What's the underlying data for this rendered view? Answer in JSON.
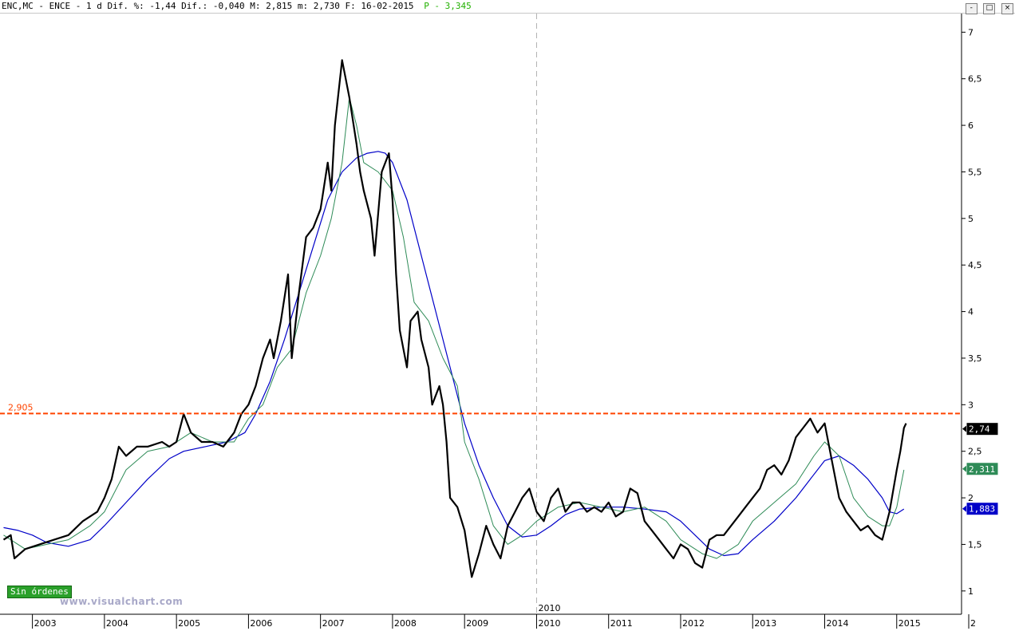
{
  "header": {
    "text": "ENC,MC - ENCE -  1 d Dif. %: -1,44 Dif.: -0,040 M: 2,815 m: 2,730 F: 16-02-2015",
    "p_text": "P - 3,345"
  },
  "window_buttons": [
    "-",
    "□",
    "×"
  ],
  "watermark": "www.visualchart.com",
  "orders_badge": "Sin órdenes",
  "colors": {
    "price": "#000000",
    "ma_short": "#2e8b57",
    "ma_long": "#0000c8",
    "resistance": "#ff4400",
    "price_box": "#000000",
    "ma_short_box": "#2e8b57",
    "ma_long_box": "#0000c8"
  },
  "chart_data": {
    "type": "line",
    "title": "ENC,MC - ENCE",
    "xlabel": "",
    "ylabel": "",
    "x_range": [
      2002.55,
      2015.9
    ],
    "ylim": [
      0.75,
      7.2
    ],
    "y_ticks": [
      1,
      1.5,
      2,
      2.5,
      3,
      3.5,
      4,
      4.5,
      5,
      5.5,
      6,
      6.5,
      7
    ],
    "y_tick_labels": [
      "1",
      "1,5",
      "2",
      "2,5",
      "3",
      "3,5",
      "4",
      "4,5",
      "5",
      "5,5",
      "6",
      "6,5",
      "7"
    ],
    "x_ticks": [
      2003,
      2004,
      2005,
      2006,
      2007,
      2008,
      2009,
      2010,
      2011,
      2012,
      2013,
      2014,
      2015
    ],
    "x_tick_labels": [
      "2003",
      "2004",
      "2005",
      "2006",
      "2007",
      "2008",
      "2009",
      "2010",
      "2011",
      "2012",
      "2013",
      "2014",
      "2015"
    ],
    "x_last_label": "2",
    "separator_year": 2010,
    "separator_label": "2010",
    "grid": false,
    "legend": "none",
    "horizontal_line": {
      "value": 2.905,
      "label": "2,905"
    },
    "series": [
      {
        "x": [
          2002.6,
          2002.7,
          2002.75,
          2002.9,
          2003.1,
          2003.3,
          2003.5,
          2003.7,
          2003.9,
          2004.0,
          2004.1,
          2004.2,
          2004.3,
          2004.45,
          2004.6,
          2004.8,
          2004.9,
          2005.0,
          2005.1,
          2005.2,
          2005.35,
          2005.5,
          2005.65,
          2005.8,
          2005.9,
          2006.0,
          2006.1,
          2006.2,
          2006.3,
          2006.35,
          2006.45,
          2006.55,
          2006.6,
          2006.7,
          2006.8,
          2006.9,
          2007.0,
          2007.1,
          2007.15,
          2007.2,
          2007.3,
          2007.4,
          2007.5,
          2007.55,
          2007.6,
          2007.7,
          2007.75,
          2007.85,
          2007.95,
          2008.0,
          2008.05,
          2008.1,
          2008.2,
          2008.25,
          2008.35,
          2008.4,
          2008.5,
          2008.55,
          2008.65,
          2008.7,
          2008.75,
          2008.8,
          2008.9,
          2009.0,
          2009.05,
          2009.1,
          2009.2,
          2009.3,
          2009.4,
          2009.5,
          2009.6,
          2009.7,
          2009.8,
          2009.9,
          2010.0,
          2010.1,
          2010.2,
          2010.3,
          2010.4,
          2010.5,
          2010.6,
          2010.7,
          2010.8,
          2010.9,
          2011.0,
          2011.1,
          2011.2,
          2011.3,
          2011.4,
          2011.5,
          2011.6,
          2011.7,
          2011.8,
          2011.9,
          2012.0,
          2012.1,
          2012.2,
          2012.3,
          2012.4,
          2012.5,
          2012.6,
          2012.7,
          2012.8,
          2012.9,
          2013.0,
          2013.1,
          2013.2,
          2013.3,
          2013.4,
          2013.5,
          2013.6,
          2013.7,
          2013.8,
          2013.9,
          2014.0,
          2014.1,
          2014.2,
          2014.3,
          2014.4,
          2014.5,
          2014.6,
          2014.7,
          2014.8,
          2014.9,
          2015.0,
          2015.05,
          2015.1,
          2015.13
        ],
        "values": [
          1.55,
          1.6,
          1.35,
          1.45,
          1.5,
          1.55,
          1.6,
          1.75,
          1.85,
          2.0,
          2.2,
          2.55,
          2.45,
          2.55,
          2.55,
          2.6,
          2.55,
          2.6,
          2.9,
          2.7,
          2.6,
          2.6,
          2.55,
          2.7,
          2.9,
          3.0,
          3.2,
          3.5,
          3.7,
          3.5,
          3.9,
          4.4,
          3.5,
          4.2,
          4.8,
          4.9,
          5.1,
          5.6,
          5.3,
          6.0,
          6.7,
          6.3,
          5.8,
          5.5,
          5.3,
          5.0,
          4.6,
          5.5,
          5.7,
          5.2,
          4.4,
          3.8,
          3.4,
          3.9,
          4.0,
          3.7,
          3.4,
          3.0,
          3.2,
          3.0,
          2.6,
          2.0,
          1.9,
          1.65,
          1.4,
          1.15,
          1.4,
          1.7,
          1.5,
          1.35,
          1.7,
          1.85,
          2.0,
          2.1,
          1.85,
          1.75,
          2.0,
          2.1,
          1.85,
          1.95,
          1.95,
          1.85,
          1.9,
          1.85,
          1.95,
          1.8,
          1.85,
          2.1,
          2.05,
          1.75,
          1.65,
          1.55,
          1.45,
          1.35,
          1.5,
          1.45,
          1.3,
          1.25,
          1.55,
          1.6,
          1.6,
          1.7,
          1.8,
          1.9,
          2.0,
          2.1,
          2.3,
          2.35,
          2.25,
          2.4,
          2.65,
          2.75,
          2.85,
          2.7,
          2.8,
          2.4,
          2.0,
          1.85,
          1.75,
          1.65,
          1.7,
          1.6,
          1.55,
          1.85,
          2.3,
          2.5,
          2.75,
          2.8
        ]
      },
      {
        "x": [
          2002.6,
          2002.9,
          2003.2,
          2003.5,
          2003.8,
          2004.0,
          2004.3,
          2004.6,
          2004.9,
          2005.2,
          2005.5,
          2005.8,
          2006.0,
          2006.2,
          2006.4,
          2006.6,
          2006.8,
          2007.0,
          2007.15,
          2007.3,
          2007.4,
          2007.5,
          2007.6,
          2007.8,
          2008.0,
          2008.15,
          2008.3,
          2008.5,
          2008.7,
          2008.9,
          2009.0,
          2009.2,
          2009.4,
          2009.6,
          2009.8,
          2010.0,
          2010.3,
          2010.6,
          2010.9,
          2011.2,
          2011.5,
          2011.8,
          2012.0,
          2012.3,
          2012.5,
          2012.8,
          2013.0,
          2013.3,
          2013.6,
          2013.85,
          2014.0,
          2014.2,
          2014.4,
          2014.6,
          2014.8,
          2014.9,
          2015.0,
          2015.1
        ],
        "values": [
          1.6,
          1.45,
          1.5,
          1.55,
          1.7,
          1.85,
          2.3,
          2.5,
          2.55,
          2.7,
          2.6,
          2.6,
          2.85,
          3.0,
          3.4,
          3.6,
          4.2,
          4.6,
          5.0,
          5.6,
          6.3,
          6.0,
          5.6,
          5.5,
          5.3,
          4.8,
          4.1,
          3.9,
          3.5,
          3.2,
          2.6,
          2.2,
          1.7,
          1.5,
          1.6,
          1.75,
          1.9,
          1.95,
          1.9,
          1.85,
          1.9,
          1.75,
          1.55,
          1.4,
          1.35,
          1.5,
          1.75,
          1.95,
          2.15,
          2.45,
          2.6,
          2.45,
          2.0,
          1.8,
          1.7,
          1.7,
          1.9,
          2.3
        ]
      },
      {
        "x": [
          2002.6,
          2002.8,
          2003.0,
          2003.2,
          2003.5,
          2003.8,
          2004.0,
          2004.3,
          2004.6,
          2004.9,
          2005.1,
          2005.4,
          2005.7,
          2005.95,
          2006.1,
          2006.3,
          2006.5,
          2006.7,
          2006.9,
          2007.1,
          2007.3,
          2007.5,
          2007.65,
          2007.8,
          2007.9,
          2008.0,
          2008.2,
          2008.4,
          2008.6,
          2008.8,
          2009.0,
          2009.2,
          2009.4,
          2009.6,
          2009.8,
          2010.0,
          2010.2,
          2010.4,
          2010.6,
          2010.9,
          2011.2,
          2011.5,
          2011.8,
          2012.0,
          2012.2,
          2012.4,
          2012.6,
          2012.8,
          2013.0,
          2013.3,
          2013.6,
          2013.8,
          2014.0,
          2014.2,
          2014.4,
          2014.6,
          2014.8,
          2014.9,
          2015.0,
          2015.1
        ],
        "values": [
          1.68,
          1.65,
          1.6,
          1.52,
          1.48,
          1.55,
          1.7,
          1.95,
          2.2,
          2.42,
          2.5,
          2.55,
          2.6,
          2.7,
          2.9,
          3.25,
          3.7,
          4.2,
          4.7,
          5.2,
          5.5,
          5.65,
          5.7,
          5.72,
          5.7,
          5.6,
          5.2,
          4.6,
          4.0,
          3.4,
          2.8,
          2.35,
          2.0,
          1.7,
          1.58,
          1.6,
          1.7,
          1.82,
          1.88,
          1.9,
          1.9,
          1.88,
          1.85,
          1.75,
          1.6,
          1.45,
          1.38,
          1.4,
          1.55,
          1.75,
          2.0,
          2.2,
          2.4,
          2.45,
          2.35,
          2.2,
          2.0,
          1.85,
          1.83,
          1.88
        ]
      }
    ],
    "value_boxes": [
      {
        "label": "2,74",
        "value": 2.74
      },
      {
        "label": "2,311",
        "value": 2.311
      },
      {
        "label": "1,883",
        "value": 1.883
      }
    ]
  }
}
